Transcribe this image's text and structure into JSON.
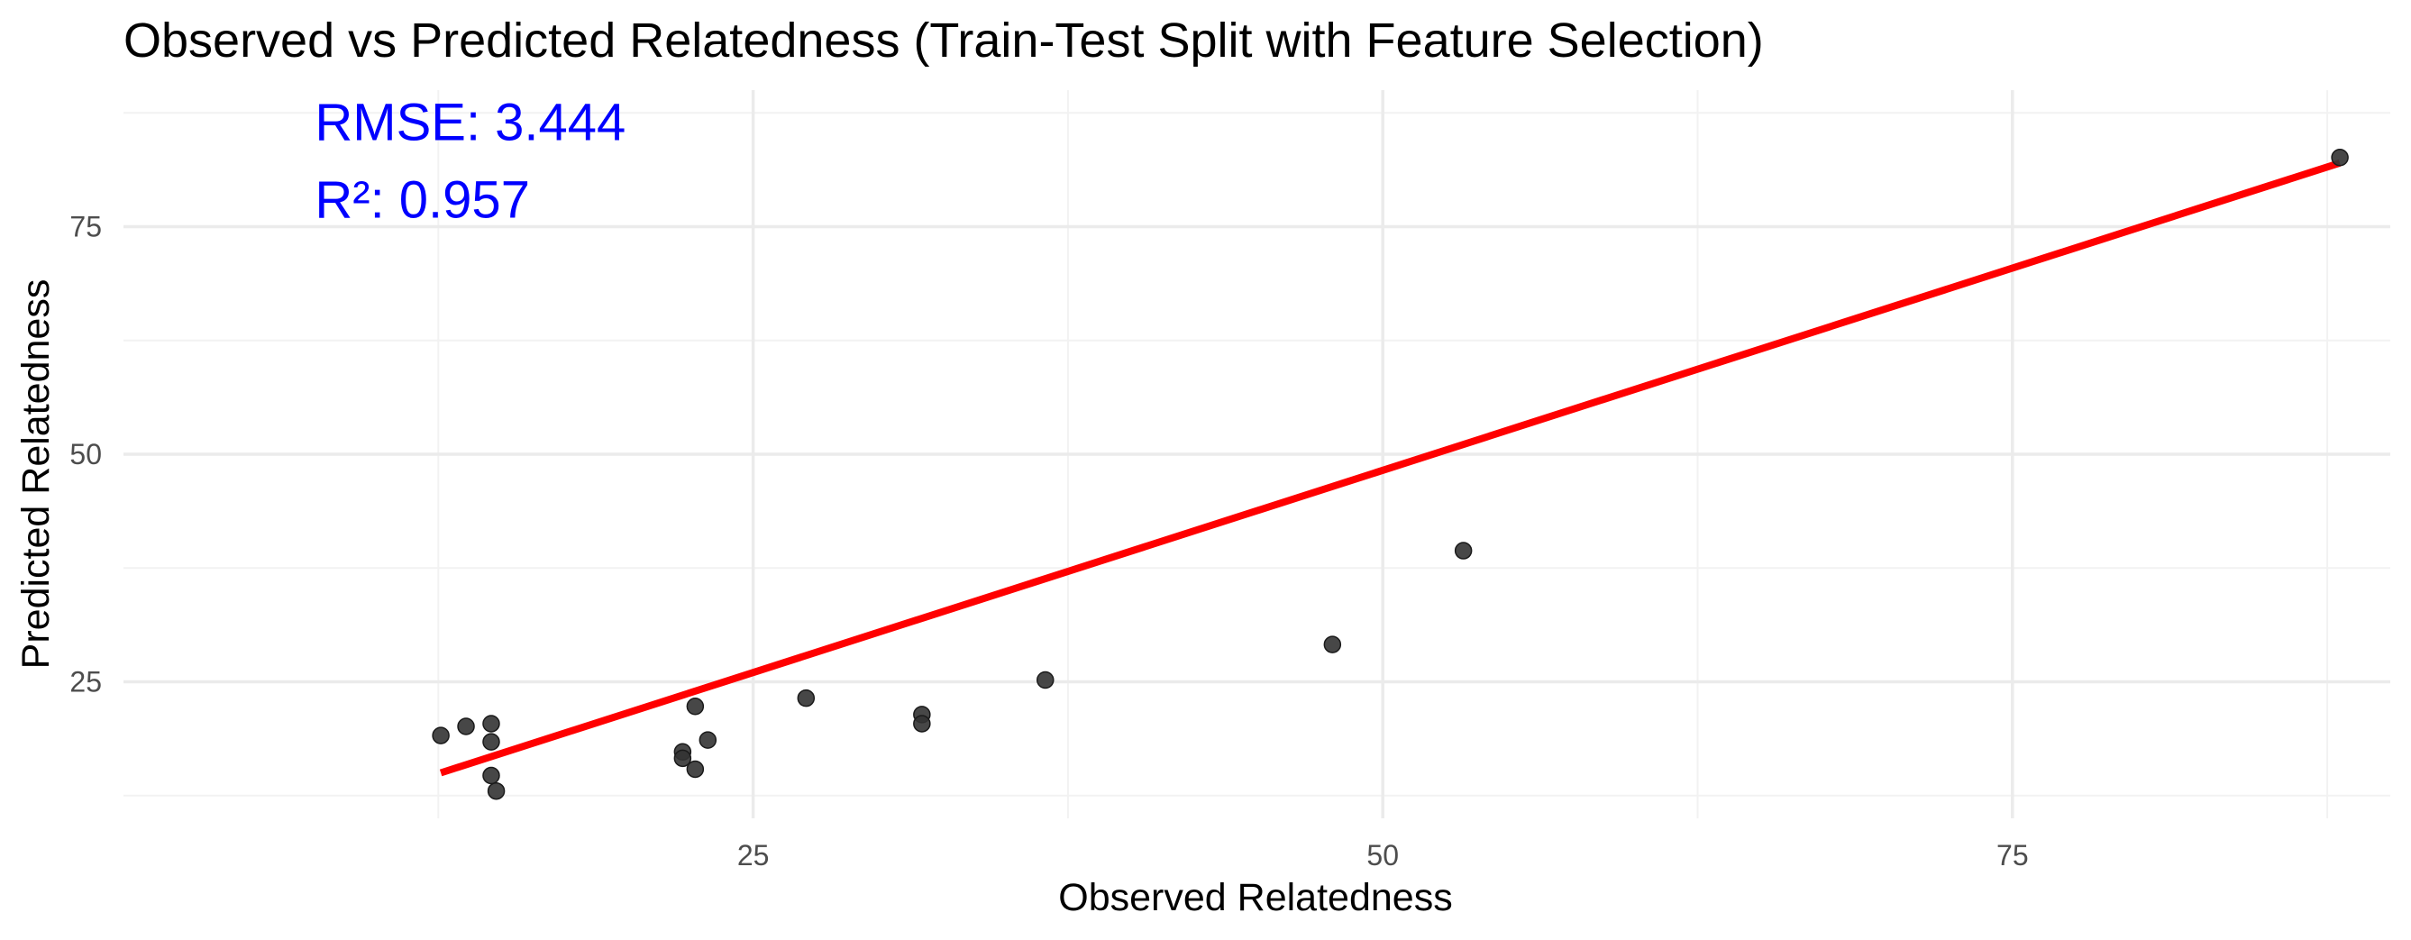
{
  "chart_data": {
    "type": "scatter",
    "title": "Observed vs Predicted Relatedness (Train-Test Split with Feature Selection)",
    "xlabel": "Observed Relatedness",
    "ylabel": "Predicted Relatedness",
    "xlim": [
      0,
      90
    ],
    "ylim": [
      10,
      90
    ],
    "x_ticks": [
      25,
      50,
      75
    ],
    "y_ticks": [
      25,
      50,
      75
    ],
    "x_minor": [
      12.5,
      37.5,
      62.5,
      87.5
    ],
    "y_minor": [
      12.5,
      37.5,
      62.5,
      87.5
    ],
    "grid": true,
    "legend": "none",
    "points": [
      {
        "x": 12.6,
        "y": 19.1
      },
      {
        "x": 13.6,
        "y": 20.1
      },
      {
        "x": 14.6,
        "y": 20.4
      },
      {
        "x": 14.6,
        "y": 18.4
      },
      {
        "x": 14.6,
        "y": 14.7
      },
      {
        "x": 14.8,
        "y": 13.0
      },
      {
        "x": 22.2,
        "y": 17.3
      },
      {
        "x": 22.2,
        "y": 16.6
      },
      {
        "x": 22.7,
        "y": 22.3
      },
      {
        "x": 22.7,
        "y": 15.4
      },
      {
        "x": 23.2,
        "y": 18.6
      },
      {
        "x": 27.1,
        "y": 23.2
      },
      {
        "x": 31.7,
        "y": 21.4
      },
      {
        "x": 31.7,
        "y": 20.4
      },
      {
        "x": 36.6,
        "y": 25.2
      },
      {
        "x": 48.0,
        "y": 29.1
      },
      {
        "x": 53.2,
        "y": 39.4
      },
      {
        "x": 88.0,
        "y": 82.6
      }
    ],
    "fit_line": {
      "x": [
        12.6,
        88.0
      ],
      "y": [
        15.0,
        82.0
      ],
      "color": "#ff0000"
    },
    "annotations": [
      {
        "text": "RMSE: 3.444",
        "x": 7.6,
        "y": 84.5,
        "color": "#0000ff"
      },
      {
        "text": "R²: 0.957",
        "x": 7.6,
        "y": 76.0,
        "color": "#0000ff"
      }
    ]
  }
}
